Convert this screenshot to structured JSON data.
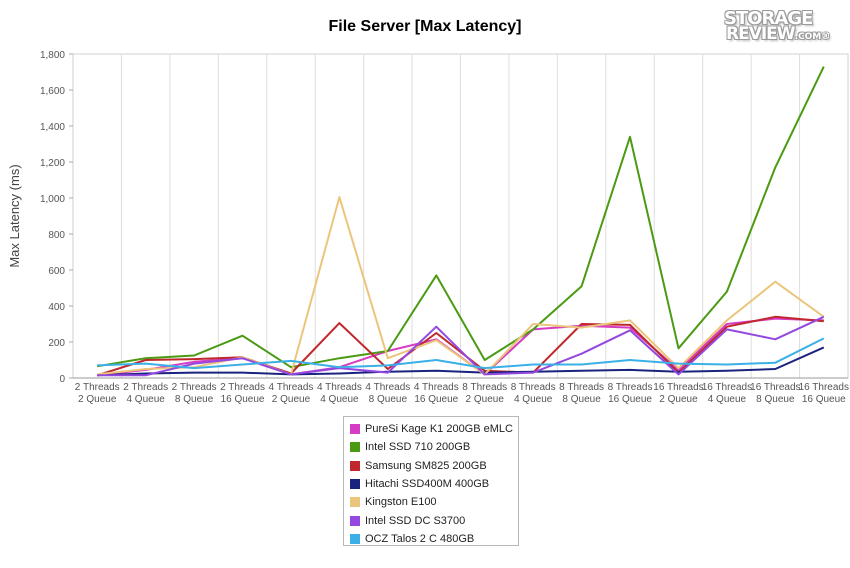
{
  "chart_data": {
    "type": "line",
    "title": "File Server [Max Latency]",
    "xlabel": "",
    "ylabel": "Max Latency (ms)",
    "ylim": [
      0,
      1800
    ],
    "yticks": [
      "0",
      "200",
      "400",
      "600",
      "800",
      "1,000",
      "1,200",
      "1,400",
      "1,600",
      "1,800"
    ],
    "ytick_values": [
      0,
      200,
      400,
      600,
      800,
      1000,
      1200,
      1400,
      1600,
      1800
    ],
    "grid": "vertical",
    "legend_position": "bottom-center",
    "categories": [
      [
        "2 Threads",
        "2 Queue"
      ],
      [
        "2 Threads",
        "4 Queue"
      ],
      [
        "2 Threads",
        "8 Queue"
      ],
      [
        "2 Threads",
        "16 Queue"
      ],
      [
        "4 Threads",
        "2 Queue"
      ],
      [
        "4 Threads",
        "4 Queue"
      ],
      [
        "4 Threads",
        "8 Queue"
      ],
      [
        "4 Threads",
        "16 Queue"
      ],
      [
        "8 Threads",
        "2 Queue"
      ],
      [
        "8 Threads",
        "4 Queue"
      ],
      [
        "8 Threads",
        "8 Queue"
      ],
      [
        "8 Threads",
        "16 Queue"
      ],
      [
        "16 Threads",
        "2 Queue"
      ],
      [
        "16 Threads",
        "4 Queue"
      ],
      [
        "16 Threads",
        "8 Queue"
      ],
      [
        "16 Threads",
        "16 Queue"
      ]
    ],
    "series": [
      {
        "name": "PureSi Kage K1 200GB eMLC",
        "color": "#d63bc4",
        "values": [
          15,
          45,
          90,
          110,
          20,
          60,
          150,
          215,
          20,
          270,
          290,
          280,
          45,
          300,
          330,
          320
        ]
      },
      {
        "name": "Intel SSD 710 200GB",
        "color": "#4a9a12",
        "values": [
          65,
          110,
          125,
          235,
          60,
          110,
          150,
          570,
          100,
          270,
          510,
          1340,
          165,
          480,
          1170,
          1730
        ]
      },
      {
        "name": "Samsung SM825 200GB",
        "color": "#c0282c",
        "values": [
          15,
          100,
          105,
          115,
          25,
          305,
          50,
          250,
          40,
          30,
          300,
          295,
          30,
          285,
          340,
          315
        ]
      },
      {
        "name": "Hitachi SSD400M 400GB",
        "color": "#1a237e",
        "values": [
          15,
          25,
          30,
          30,
          20,
          25,
          35,
          40,
          30,
          35,
          40,
          45,
          35,
          40,
          50,
          170
        ]
      },
      {
        "name": "Kingston E100",
        "color": "#ecc57c",
        "values": [
          20,
          50,
          60,
          115,
          20,
          1005,
          110,
          210,
          20,
          300,
          280,
          320,
          55,
          320,
          535,
          340
        ]
      },
      {
        "name": "Intel SSD DC S3700",
        "color": "#9448e0",
        "values": [
          15,
          15,
          80,
          110,
          20,
          55,
          30,
          285,
          20,
          30,
          135,
          265,
          20,
          270,
          215,
          340
        ]
      },
      {
        "name": "OCZ Talos 2 C 480GB",
        "color": "#3ab0e6",
        "values": [
          70,
          80,
          55,
          75,
          95,
          60,
          70,
          100,
          55,
          75,
          75,
          100,
          80,
          75,
          85,
          220
        ]
      }
    ]
  },
  "logo": {
    "line1": "STORAGE",
    "line2": "REVIEW",
    "suffix": ".COM",
    "mark": "®"
  }
}
